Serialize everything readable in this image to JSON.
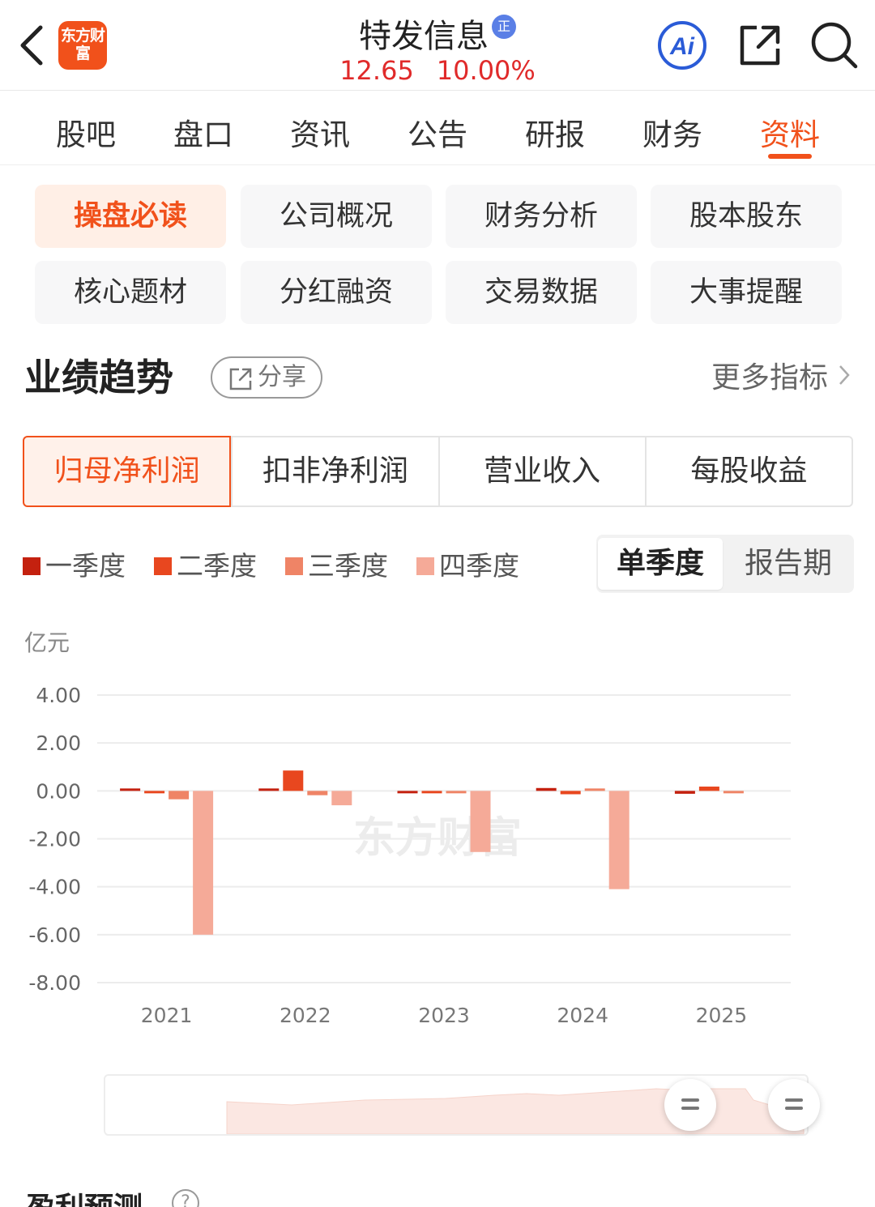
{
  "header": {
    "logo_text": "东方财富",
    "title": "特发信息",
    "reg_badge": "正",
    "price": "12.65",
    "change_pct": "10.00%",
    "ai_label": "Ai"
  },
  "tabs": [
    {
      "label": "股吧"
    },
    {
      "label": "盘口"
    },
    {
      "label": "资讯"
    },
    {
      "label": "公告"
    },
    {
      "label": "研报"
    },
    {
      "label": "财务"
    },
    {
      "label": "资料"
    }
  ],
  "subnav": [
    {
      "label": "操盘必读"
    },
    {
      "label": "公司概况"
    },
    {
      "label": "财务分析"
    },
    {
      "label": "股本股东"
    },
    {
      "label": "核心题材"
    },
    {
      "label": "分红融资"
    },
    {
      "label": "交易数据"
    },
    {
      "label": "大事提醒"
    }
  ],
  "section": {
    "title": "业绩趋势",
    "share_label": "分享",
    "more_label": "更多指标"
  },
  "metric_tabs": [
    {
      "label": "归母净利润"
    },
    {
      "label": "扣非净利润"
    },
    {
      "label": "营业收入"
    },
    {
      "label": "每股收益"
    }
  ],
  "legend": [
    {
      "label": "一季度",
      "color": "#c4210f"
    },
    {
      "label": "二季度",
      "color": "#e8471f"
    },
    {
      "label": "三季度",
      "color": "#ef8466"
    },
    {
      "label": "四季度",
      "color": "#f5aa98"
    }
  ],
  "period_toggle": {
    "active": "单季度",
    "inactive": "报告期"
  },
  "unit_label": "亿元",
  "watermark": "东方财富",
  "chart_data": {
    "type": "bar",
    "categories": [
      "2021",
      "2022",
      "2023",
      "2024",
      "2025"
    ],
    "y_ticks": [
      "4.00",
      "2.00",
      "0.00",
      "-2.00",
      "-4.00",
      "-6.00",
      "-8.00"
    ],
    "ylim": [
      -8,
      4
    ],
    "ylabel": "亿元",
    "series": [
      {
        "name": "一季度",
        "values": [
          0.1,
          0.05,
          -0.08,
          0.12,
          -0.12
        ]
      },
      {
        "name": "二季度",
        "values": [
          -0.03,
          0.85,
          -0.03,
          -0.14,
          0.18
        ]
      },
      {
        "name": "三季度",
        "values": [
          -0.35,
          -0.18,
          -0.03,
          0.05,
          -0.04
        ]
      },
      {
        "name": "四季度",
        "values": [
          -6.0,
          -0.6,
          -2.55,
          -4.1,
          null
        ]
      }
    ]
  },
  "footer": {
    "forecast_title": "盈利预测",
    "help": "?"
  }
}
